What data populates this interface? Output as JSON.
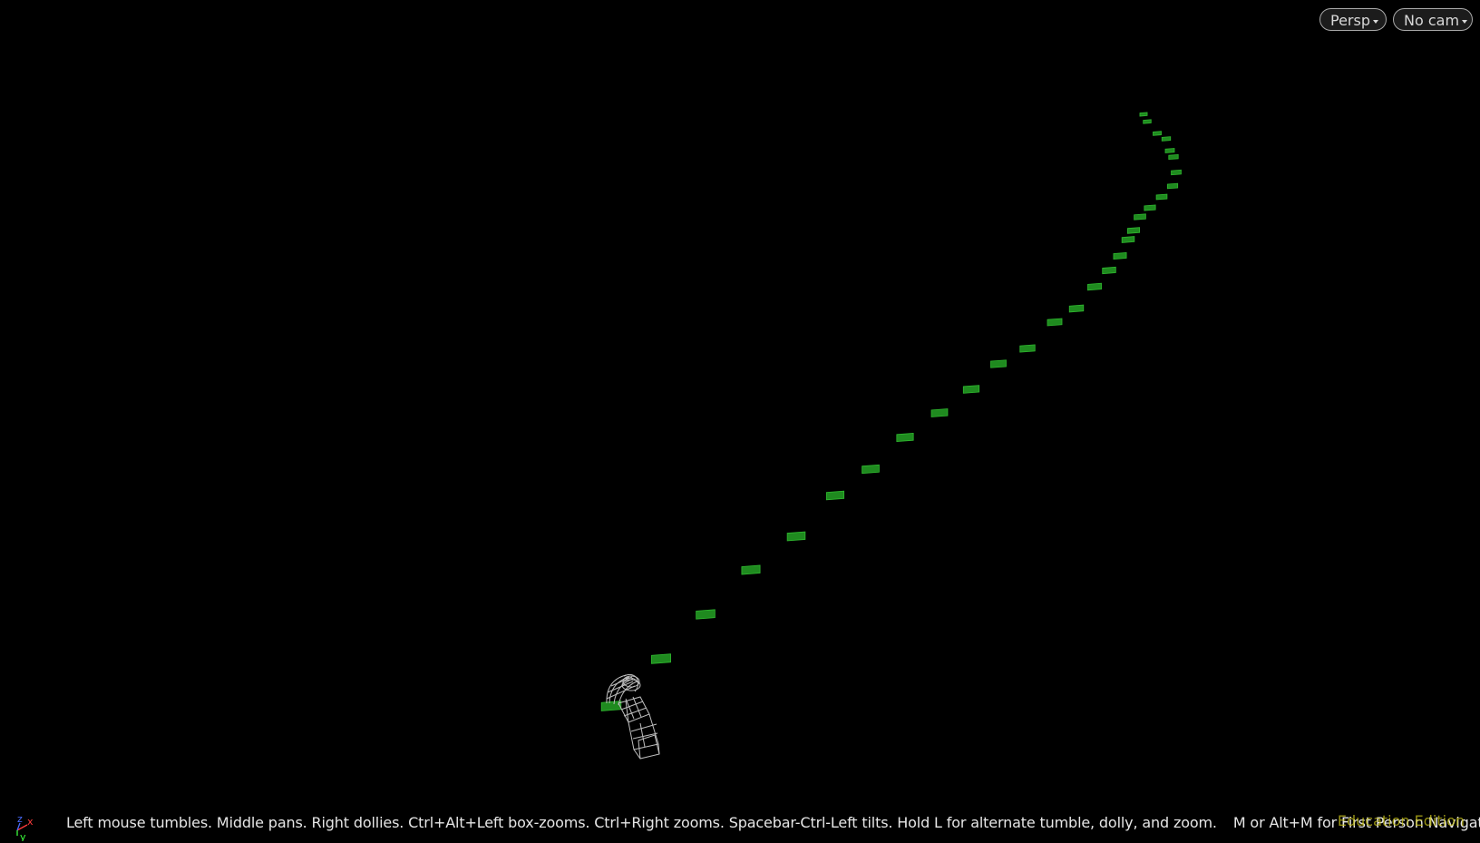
{
  "viewport": {
    "background": "#000000",
    "view_menu_label": "Persp",
    "camera_menu_label": "No cam",
    "hint_primary": "Left mouse tumbles. Middle pans. Right dollies. Ctrl+Alt+Left box-zooms. Ctrl+Right zooms. Spacebar-Ctrl-Left tilts. Hold L for alternate tumble, dolly, and zoom.",
    "hint_secondary": "M or Alt+M for First Person Navigation.",
    "edition_label": "Education Edition",
    "edition_color": "#c8c21c"
  },
  "axis_gizmo": {
    "labels": {
      "x": "x",
      "y": "y",
      "z": "z"
    },
    "colors": {
      "x": "#ff3b3b",
      "y": "#3bff3b",
      "z": "#4a6bff"
    },
    "icon": "axis-gizmo-icon"
  },
  "scene": {
    "marker_color": "#1f8a1f",
    "marker_highlight": "#2fb82f",
    "wireframe_color": "#bdbdbd",
    "markers_icon": "green-point-marker",
    "object_icon": "wireframe-camera-icon"
  }
}
